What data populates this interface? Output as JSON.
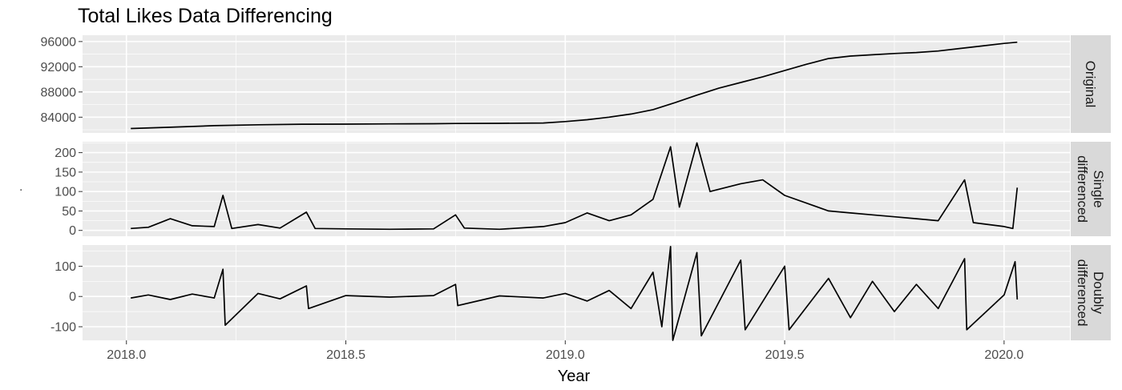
{
  "chart_data": {
    "type": "line",
    "title": "Total Likes Data Differencing",
    "xlabel": "Year",
    "ylabel": ".",
    "xlim": [
      2017.9,
      2020.15
    ],
    "x_ticks": [
      2018.0,
      2018.5,
      2019.0,
      2019.5,
      2020.0
    ],
    "x_tick_labels": [
      "2018.0",
      "2018.5",
      "2019.0",
      "2019.5",
      "2020.0"
    ],
    "grid": true,
    "facets": [
      {
        "name": "Original",
        "ylim": [
          81500,
          97000
        ],
        "y_ticks": [
          84000,
          88000,
          92000,
          96000
        ],
        "y_tick_labels": [
          "84000",
          "88000",
          "92000",
          "96000"
        ],
        "points": [
          [
            2018.01,
            82200
          ],
          [
            2018.1,
            82400
          ],
          [
            2018.2,
            82650
          ],
          [
            2018.3,
            82800
          ],
          [
            2018.4,
            82880
          ],
          [
            2018.5,
            82900
          ],
          [
            2018.6,
            82930
          ],
          [
            2018.7,
            82960
          ],
          [
            2018.75,
            83000
          ],
          [
            2018.85,
            83020
          ],
          [
            2018.95,
            83080
          ],
          [
            2019.0,
            83300
          ],
          [
            2019.05,
            83600
          ],
          [
            2019.1,
            84000
          ],
          [
            2019.15,
            84500
          ],
          [
            2019.2,
            85200
          ],
          [
            2019.25,
            86300
          ],
          [
            2019.3,
            87500
          ],
          [
            2019.35,
            88600
          ],
          [
            2019.4,
            89500
          ],
          [
            2019.45,
            90400
          ],
          [
            2019.5,
            91400
          ],
          [
            2019.55,
            92400
          ],
          [
            2019.6,
            93300
          ],
          [
            2019.65,
            93700
          ],
          [
            2019.7,
            93900
          ],
          [
            2019.75,
            94100
          ],
          [
            2019.8,
            94250
          ],
          [
            2019.85,
            94500
          ],
          [
            2019.9,
            94900
          ],
          [
            2019.95,
            95300
          ],
          [
            2020.0,
            95700
          ],
          [
            2020.03,
            95900
          ]
        ]
      },
      {
        "name": "Single differenced",
        "strip_lines": [
          "Single",
          "differenced"
        ],
        "ylim": [
          -15,
          228
        ],
        "y_ticks": [
          0,
          50,
          100,
          150,
          200
        ],
        "y_tick_labels": [
          "0",
          "50",
          "100",
          "150",
          "200"
        ],
        "points": [
          [
            2018.01,
            5
          ],
          [
            2018.05,
            8
          ],
          [
            2018.1,
            30
          ],
          [
            2018.15,
            12
          ],
          [
            2018.2,
            10
          ],
          [
            2018.22,
            90
          ],
          [
            2018.24,
            5
          ],
          [
            2018.3,
            15
          ],
          [
            2018.35,
            6
          ],
          [
            2018.41,
            47
          ],
          [
            2018.43,
            5
          ],
          [
            2018.5,
            4
          ],
          [
            2018.6,
            3
          ],
          [
            2018.7,
            4
          ],
          [
            2018.75,
            40
          ],
          [
            2018.77,
            6
          ],
          [
            2018.85,
            3
          ],
          [
            2018.95,
            10
          ],
          [
            2019.0,
            20
          ],
          [
            2019.05,
            45
          ],
          [
            2019.1,
            25
          ],
          [
            2019.15,
            40
          ],
          [
            2019.2,
            80
          ],
          [
            2019.24,
            215
          ],
          [
            2019.26,
            60
          ],
          [
            2019.3,
            225
          ],
          [
            2019.33,
            100
          ],
          [
            2019.4,
            120
          ],
          [
            2019.45,
            130
          ],
          [
            2019.5,
            90
          ],
          [
            2019.55,
            70
          ],
          [
            2019.6,
            50
          ],
          [
            2019.65,
            45
          ],
          [
            2019.7,
            40
          ],
          [
            2019.75,
            35
          ],
          [
            2019.8,
            30
          ],
          [
            2019.85,
            25
          ],
          [
            2019.91,
            130
          ],
          [
            2019.93,
            20
          ],
          [
            2020.0,
            10
          ],
          [
            2020.02,
            5
          ],
          [
            2020.03,
            110
          ]
        ]
      },
      {
        "name": "Doubly differenced",
        "strip_lines": [
          "Doubly",
          "differenced"
        ],
        "ylim": [
          -145,
          170
        ],
        "y_ticks": [
          -100,
          0,
          100
        ],
        "y_tick_labels": [
          "-100",
          "0",
          "100"
        ],
        "points": [
          [
            2018.01,
            -5
          ],
          [
            2018.05,
            5
          ],
          [
            2018.1,
            -10
          ],
          [
            2018.15,
            8
          ],
          [
            2018.2,
            -5
          ],
          [
            2018.22,
            90
          ],
          [
            2018.225,
            -95
          ],
          [
            2018.3,
            10
          ],
          [
            2018.35,
            -8
          ],
          [
            2018.41,
            35
          ],
          [
            2018.415,
            -40
          ],
          [
            2018.5,
            3
          ],
          [
            2018.6,
            -2
          ],
          [
            2018.7,
            3
          ],
          [
            2018.75,
            40
          ],
          [
            2018.755,
            -30
          ],
          [
            2018.85,
            2
          ],
          [
            2018.95,
            -5
          ],
          [
            2019.0,
            10
          ],
          [
            2019.05,
            -15
          ],
          [
            2019.1,
            20
          ],
          [
            2019.15,
            -40
          ],
          [
            2019.2,
            80
          ],
          [
            2019.22,
            -100
          ],
          [
            2019.24,
            165
          ],
          [
            2019.245,
            -145
          ],
          [
            2019.3,
            145
          ],
          [
            2019.31,
            -130
          ],
          [
            2019.4,
            120
          ],
          [
            2019.41,
            -110
          ],
          [
            2019.5,
            100
          ],
          [
            2019.51,
            -110
          ],
          [
            2019.6,
            60
          ],
          [
            2019.65,
            -70
          ],
          [
            2019.7,
            50
          ],
          [
            2019.75,
            -50
          ],
          [
            2019.8,
            40
          ],
          [
            2019.85,
            -40
          ],
          [
            2019.91,
            125
          ],
          [
            2019.915,
            -110
          ],
          [
            2020.0,
            5
          ],
          [
            2020.025,
            115
          ],
          [
            2020.03,
            -10
          ]
        ]
      }
    ]
  }
}
